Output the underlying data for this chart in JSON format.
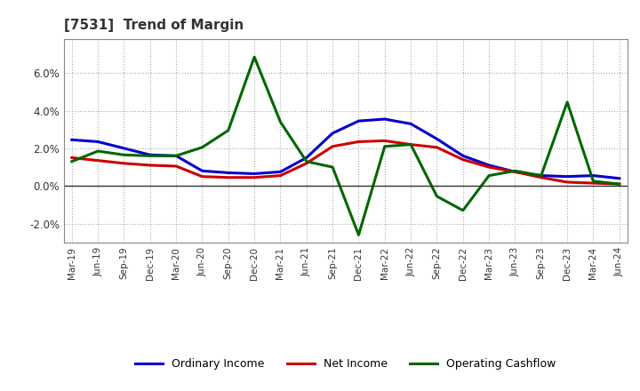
{
  "title": "[7531]  Trend of Margin",
  "x_labels": [
    "Mar-19",
    "Jun-19",
    "Sep-19",
    "Dec-19",
    "Mar-20",
    "Jun-20",
    "Sep-20",
    "Dec-20",
    "Mar-21",
    "Jun-21",
    "Sep-21",
    "Dec-21",
    "Mar-22",
    "Jun-22",
    "Sep-22",
    "Dec-22",
    "Mar-23",
    "Jun-23",
    "Sep-23",
    "Dec-23",
    "Mar-24",
    "Jun-24"
  ],
  "ordinary_income": [
    2.45,
    2.35,
    2.0,
    1.65,
    1.6,
    0.8,
    0.7,
    0.65,
    0.75,
    1.5,
    2.8,
    3.45,
    3.55,
    3.3,
    2.5,
    1.6,
    1.1,
    0.75,
    0.55,
    0.5,
    0.55,
    0.4
  ],
  "net_income": [
    1.5,
    1.35,
    1.2,
    1.1,
    1.05,
    0.5,
    0.45,
    0.45,
    0.55,
    1.2,
    2.1,
    2.35,
    2.4,
    2.2,
    2.05,
    1.4,
    1.0,
    0.75,
    0.45,
    0.2,
    0.15,
    0.1
  ],
  "operating_cashflow": [
    1.3,
    1.85,
    1.65,
    1.6,
    1.6,
    2.05,
    2.95,
    6.85,
    3.4,
    1.3,
    1.0,
    -2.6,
    2.1,
    2.2,
    -0.55,
    -1.3,
    0.55,
    0.8,
    0.55,
    4.45,
    0.25,
    0.1
  ],
  "ylim": [
    -3.0,
    7.8
  ],
  "yticks": [
    -2.0,
    0.0,
    2.0,
    4.0,
    6.0
  ],
  "colors": {
    "ordinary_income": "#0000cc",
    "net_income": "#cc0000",
    "operating_cashflow": "#006600",
    "grid": "#aaaaaa",
    "zero_line": "#333333",
    "spine": "#888888"
  },
  "legend": [
    "Ordinary Income",
    "Net Income",
    "Operating Cashflow"
  ],
  "background_color": "#ffffff",
  "line_width": 2.2,
  "title_color": "#333333"
}
